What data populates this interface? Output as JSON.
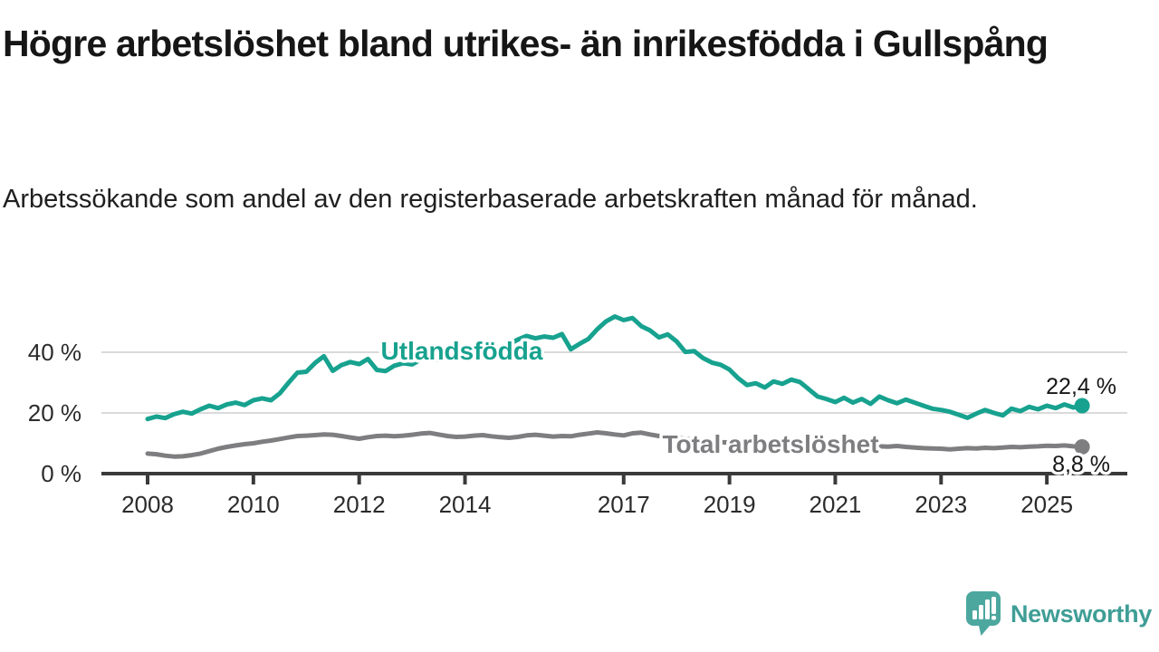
{
  "header": {
    "title": "Högre arbetslöshet bland utrikes- än inrikesfödda i Gullspång",
    "subtitle": "Arbetssökande som andel av den registerbaserade arbetskraften månad för månad."
  },
  "footer": {
    "brand": "Newsworthy"
  },
  "colors": {
    "teal": "#17a28f",
    "gray": "#7e7e81",
    "grid": "#dadada",
    "axis": "#3a3a3a",
    "tick_text": "#2b2b2b",
    "title_text": "#161616",
    "brand_bubble": "#4ca79f",
    "brand_text": "#3f9e96"
  },
  "chart_data": {
    "type": "line",
    "title": "Högre arbetslöshet bland utrikes- än inrikesfödda i Gullspång",
    "subtitle": "Arbetssökande som andel av den registerbaserade arbetskraften månad för månad.",
    "x_start": 2008.0,
    "x_step": 0.16667,
    "xlim": [
      2007.1,
      2026.5
    ],
    "ylim": [
      0,
      55
    ],
    "grid": "horizontal-only",
    "x_ticks": [
      {
        "year": 2008,
        "label": "2008"
      },
      {
        "year": 2010,
        "label": "2010"
      },
      {
        "year": 2012,
        "label": "2012"
      },
      {
        "year": 2014,
        "label": "2014"
      },
      {
        "year": 2017,
        "label": "2017"
      },
      {
        "year": 2019,
        "label": "2019"
      },
      {
        "year": 2021,
        "label": "2021"
      },
      {
        "year": 2023,
        "label": "2023"
      },
      {
        "year": 2025,
        "label": "2025"
      }
    ],
    "y_ticks": [
      {
        "value": 0,
        "label": "0 %"
      },
      {
        "value": 20,
        "label": "20 %"
      },
      {
        "value": 40,
        "label": "40 %"
      }
    ],
    "series": [
      {
        "name": "Utlandsfödda",
        "color": "#17a28f",
        "end_value": 22.4,
        "end_label": "22,4 %",
        "values": [
          18.0,
          18.8,
          18.3,
          19.6,
          20.4,
          19.8,
          21.2,
          22.4,
          21.6,
          22.8,
          23.4,
          22.6,
          24.2,
          24.8,
          24.2,
          26.5,
          30.0,
          33.3,
          33.6,
          36.5,
          38.7,
          33.9,
          35.8,
          36.8,
          36.1,
          37.8,
          34.2,
          33.8,
          35.6,
          36.4,
          36.0,
          37.6,
          38.6,
          37.4,
          38.2,
          39.6,
          40.6,
          41.4,
          40.6,
          41.8,
          41.2,
          42.6,
          44.2,
          45.4,
          44.6,
          45.2,
          44.8,
          46.0,
          41.0,
          42.8,
          44.4,
          47.6,
          50.2,
          51.8,
          50.6,
          51.3,
          48.6,
          47.2,
          44.9,
          45.9,
          43.6,
          40.1,
          40.4,
          38.1,
          36.6,
          35.9,
          34.3,
          31.4,
          29.2,
          29.8,
          28.4,
          30.4,
          29.6,
          31.0,
          30.2,
          27.8,
          25.4,
          24.6,
          23.6,
          25.0,
          23.4,
          24.6,
          23.0,
          25.4,
          24.2,
          23.2,
          24.4,
          23.4,
          22.4,
          21.4,
          21.0,
          20.4,
          19.4,
          18.4,
          19.8,
          21.0,
          20.0,
          19.2,
          21.4,
          20.6,
          22.0,
          21.2,
          22.4,
          21.6,
          22.8,
          21.8,
          22.4
        ]
      },
      {
        "name": "Total arbetslöshet",
        "color": "#7e7e81",
        "end_value": 8.8,
        "end_label": "8,8 %",
        "values": [
          6.6,
          6.4,
          5.9,
          5.6,
          5.7,
          6.1,
          6.6,
          7.4,
          8.2,
          8.8,
          9.3,
          9.7,
          10.0,
          10.5,
          10.9,
          11.4,
          11.9,
          12.4,
          12.5,
          12.7,
          12.9,
          12.8,
          12.4,
          11.9,
          11.5,
          12.0,
          12.4,
          12.5,
          12.3,
          12.5,
          12.8,
          13.2,
          13.4,
          12.9,
          12.4,
          12.1,
          12.2,
          12.5,
          12.7,
          12.3,
          12.0,
          11.8,
          12.1,
          12.6,
          12.8,
          12.5,
          12.2,
          12.4,
          12.3,
          12.8,
          13.2,
          13.6,
          13.3,
          12.9,
          12.6,
          13.3,
          13.5,
          12.9,
          12.4,
          12.1,
          11.8,
          11.5,
          11.1,
          10.9,
          10.6,
          10.4,
          10.2,
          9.9,
          9.7,
          9.6,
          9.4,
          9.5,
          9.6,
          10.0,
          9.8,
          9.6,
          9.4,
          9.3,
          9.2,
          9.5,
          9.3,
          9.1,
          8.9,
          9.0,
          8.9,
          9.1,
          8.8,
          8.6,
          8.4,
          8.3,
          8.2,
          8.0,
          8.2,
          8.4,
          8.3,
          8.5,
          8.4,
          8.6,
          8.8,
          8.7,
          8.9,
          9.0,
          9.2,
          9.1,
          9.3,
          9.0,
          8.8
        ]
      }
    ]
  }
}
